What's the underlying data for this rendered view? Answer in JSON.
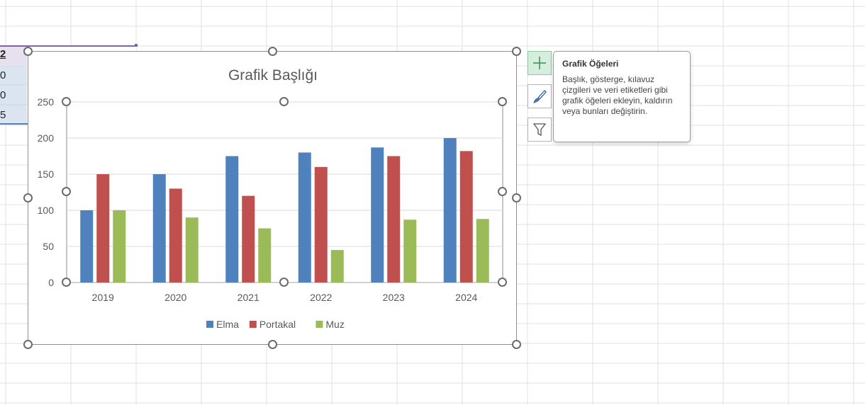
{
  "sheet": {
    "cell_fragments": [
      "2",
      "0",
      "0",
      "5"
    ]
  },
  "chart": {
    "title": "Grafik Başlığı"
  },
  "chart_data": {
    "type": "bar",
    "title": "Grafik Başlığı",
    "categories": [
      "2019",
      "2020",
      "2021",
      "2022",
      "2023",
      "2024"
    ],
    "series": [
      {
        "name": "Elma",
        "color": "#4f81bd",
        "values": [
          100,
          150,
          175,
          180,
          187,
          200
        ]
      },
      {
        "name": "Portakal",
        "color": "#c0504d",
        "values": [
          150,
          130,
          120,
          160,
          175,
          182
        ]
      },
      {
        "name": "Muz",
        "color": "#9bbb59",
        "values": [
          100,
          90,
          75,
          45,
          87,
          88
        ]
      }
    ],
    "ylim": [
      0,
      250
    ],
    "yticks": [
      0,
      50,
      100,
      150,
      200,
      250
    ],
    "grid": true,
    "legend_position": "bottom"
  },
  "side_buttons": {
    "elements_icon": "plus-icon",
    "styles_icon": "brush-icon",
    "filters_icon": "funnel-icon"
  },
  "tooltip": {
    "title": "Grafik Öğeleri",
    "body": "Başlık, gösterge, kılavuz çizgileri ve veri etiketleri gibi grafik öğeleri ekleyin, kaldırın veya bunları değiştirin."
  }
}
